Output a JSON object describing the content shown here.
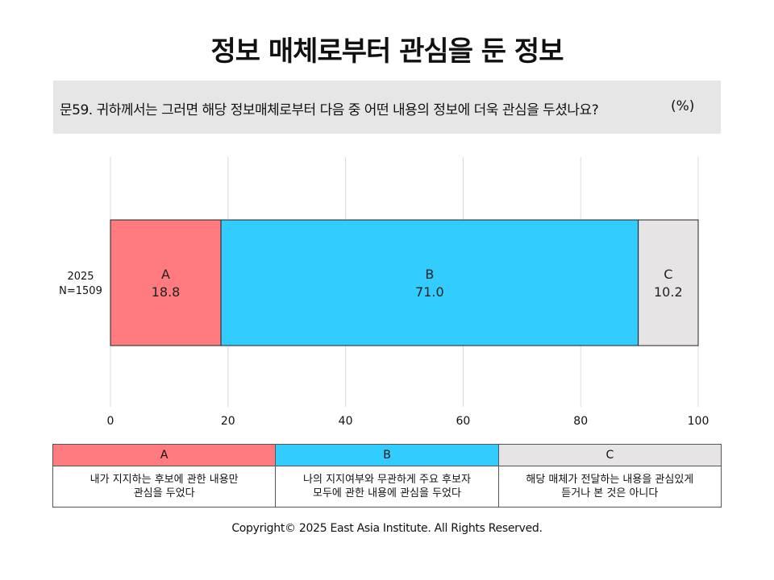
{
  "title": "정보 매체로부터 관심을 둔 정보",
  "question": {
    "text": "문59. 귀하께서는 그러면 해당 정보매체로부터 다음 중 어떤 내용의 정보에 더욱 관심을 두셨나요?",
    "unit": "(%)"
  },
  "chart_data": {
    "type": "bar",
    "orientation": "horizontal",
    "stacked": true,
    "categories": [
      "2025\nN=1509"
    ],
    "series": [
      {
        "name": "A",
        "values": [
          18.8
        ],
        "color": "#FF7B7F"
      },
      {
        "name": "B",
        "values": [
          71.0
        ],
        "color": "#33CCFF"
      },
      {
        "name": "C",
        "values": [
          10.2
        ],
        "color": "#E6E4E4"
      }
    ],
    "xlim": [
      0,
      100
    ],
    "xticks": [
      "0",
      "20",
      "40",
      "60",
      "80",
      "100"
    ],
    "grid": true
  },
  "legend": [
    {
      "key": "A",
      "description": "내가 지지하는 후보에 관한 내용만\n관심을 두었다",
      "color": "#FF7B7F"
    },
    {
      "key": "B",
      "description": "나의 지지여부와 무관하게 주요 후보자\n모두에 관한 내용에 관심을 두었다",
      "color": "#33CCFF"
    },
    {
      "key": "C",
      "description": "해당 매체가 전달하는 내용을 관심있게\n듣거나 본 것은 아니다",
      "color": "#E6E4E4"
    }
  ],
  "copyright": "Copyright© 2025 East Asia Institute. All Rights Reserved."
}
